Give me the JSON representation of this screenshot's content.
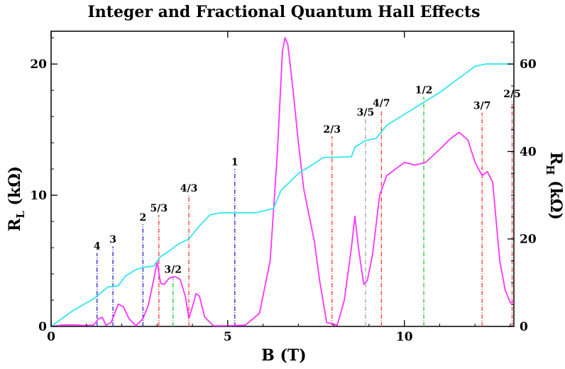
{
  "colors": {
    "longitudinal": "#ff33ff",
    "hall": "#33e6ee",
    "integer_marker": "#3333cc",
    "fractional_marker": "#ff4444",
    "even_marker": "#33cc33",
    "five_thirds_marker": "#aaaaaa"
  },
  "chart_data": {
    "type": "line",
    "title": "Integer and Fractional Quantum Hall Effects",
    "xlabel": "B (T)",
    "ylabel_left": {
      "main": "R",
      "sub": "L",
      "unit": " (kΩ)"
    },
    "ylabel_right": {
      "main": "R",
      "sub": "H",
      "unit": " (kΩ)"
    },
    "xlim": [
      0,
      13.1
    ],
    "ylim_left": [
      0,
      22.5
    ],
    "ylim_right": [
      0,
      67.5
    ],
    "x_ticks": [
      0,
      5,
      10
    ],
    "y_ticks_left": [
      0,
      10,
      20
    ],
    "y_ticks_right": [
      0,
      20,
      40,
      60
    ],
    "grid": false,
    "series": [
      {
        "key": "R_L",
        "axis": "left",
        "points": [
          [
            0,
            0
          ],
          [
            0.3,
            0.1
          ],
          [
            0.6,
            0.12
          ],
          [
            0.9,
            0.08
          ],
          [
            1.2,
            0.1
          ],
          [
            1.35,
            0.6
          ],
          [
            1.45,
            0.7
          ],
          [
            1.55,
            0.1
          ],
          [
            1.7,
            0.3
          ],
          [
            1.9,
            1.7
          ],
          [
            2.05,
            1.5
          ],
          [
            2.2,
            0.6
          ],
          [
            2.4,
            0.05
          ],
          [
            2.6,
            0.6
          ],
          [
            2.75,
            1.6
          ],
          [
            2.9,
            3.5
          ],
          [
            3.0,
            4.9
          ],
          [
            3.1,
            3.3
          ],
          [
            3.2,
            3.2
          ],
          [
            3.35,
            3.7
          ],
          [
            3.5,
            3.8
          ],
          [
            3.65,
            3.6
          ],
          [
            3.8,
            2.3
          ],
          [
            3.9,
            0.6
          ],
          [
            4.0,
            1.5
          ],
          [
            4.1,
            2.5
          ],
          [
            4.2,
            2.3
          ],
          [
            4.35,
            0.7
          ],
          [
            4.6,
            0.05
          ],
          [
            5.0,
            0.05
          ],
          [
            5.5,
            0.1
          ],
          [
            5.9,
            1.0
          ],
          [
            6.2,
            5.0
          ],
          [
            6.4,
            13.0
          ],
          [
            6.55,
            21.0
          ],
          [
            6.62,
            22.0
          ],
          [
            6.7,
            21.5
          ],
          [
            6.85,
            18.0
          ],
          [
            7.0,
            14.0
          ],
          [
            7.15,
            10.5
          ],
          [
            7.3,
            8.5
          ],
          [
            7.45,
            6.5
          ],
          [
            7.6,
            3.5
          ],
          [
            7.8,
            0.3
          ],
          [
            8.1,
            0.1
          ],
          [
            8.3,
            2.0
          ],
          [
            8.5,
            6.0
          ],
          [
            8.6,
            8.4
          ],
          [
            8.7,
            6.0
          ],
          [
            8.85,
            3.2
          ],
          [
            8.95,
            3.5
          ],
          [
            9.1,
            5.5
          ],
          [
            9.3,
            10.0
          ],
          [
            9.5,
            11.5
          ],
          [
            9.8,
            12.1
          ],
          [
            10.0,
            12.5
          ],
          [
            10.3,
            12.3
          ],
          [
            10.6,
            12.5
          ],
          [
            11.0,
            13.5
          ],
          [
            11.3,
            14.3
          ],
          [
            11.55,
            14.8
          ],
          [
            11.8,
            14.2
          ],
          [
            12.0,
            12.5
          ],
          [
            12.2,
            11.5
          ],
          [
            12.35,
            11.8
          ],
          [
            12.5,
            11.0
          ],
          [
            12.6,
            8.0
          ],
          [
            12.7,
            5.0
          ],
          [
            12.85,
            2.8
          ],
          [
            13.0,
            1.8
          ],
          [
            13.1,
            1.8
          ]
        ]
      },
      {
        "key": "R_H",
        "axis": "right",
        "points": [
          [
            0,
            0
          ],
          [
            0.6,
            3.5
          ],
          [
            1.2,
            6.3
          ],
          [
            1.35,
            7.3
          ],
          [
            1.6,
            9.0
          ],
          [
            1.9,
            9.3
          ],
          [
            2.1,
            11.5
          ],
          [
            2.4,
            13.0
          ],
          [
            2.6,
            13.5
          ],
          [
            2.9,
            13.8
          ],
          [
            3.1,
            16.0
          ],
          [
            3.3,
            17.0
          ],
          [
            3.6,
            18.8
          ],
          [
            3.9,
            20.0
          ],
          [
            4.2,
            23.0
          ],
          [
            4.5,
            25.5
          ],
          [
            4.8,
            26.0
          ],
          [
            5.8,
            26.0
          ],
          [
            6.3,
            27.0
          ],
          [
            6.5,
            31.0
          ],
          [
            7.0,
            35.0
          ],
          [
            7.5,
            37.5
          ],
          [
            7.7,
            38.6
          ],
          [
            8.5,
            38.8
          ],
          [
            8.6,
            41.0
          ],
          [
            8.9,
            42.5
          ],
          [
            9.2,
            43.0
          ],
          [
            9.5,
            46.0
          ],
          [
            10.0,
            48.5
          ],
          [
            10.5,
            51.0
          ],
          [
            11.0,
            53.5
          ],
          [
            11.5,
            56.5
          ],
          [
            12.0,
            59.5
          ],
          [
            12.3,
            60.0
          ],
          [
            13.1,
            60.0
          ]
        ]
      }
    ],
    "filling_factor_markers": [
      {
        "label": "4",
        "x": 1.3,
        "top_left": 5.6,
        "style": "integer"
      },
      {
        "label": "3",
        "x": 1.75,
        "top_left": 6.1,
        "style": "integer"
      },
      {
        "label": "2",
        "x": 2.6,
        "top_left": 7.8,
        "style": "integer"
      },
      {
        "label": "5/3",
        "x": 3.05,
        "top_left": 8.5,
        "style": "fractional"
      },
      {
        "label": "3/2",
        "x": 3.45,
        "top_left": 3.8,
        "style": "even"
      },
      {
        "label": "4/3",
        "x": 3.9,
        "top_left": 10.0,
        "style": "fractional"
      },
      {
        "label": "1",
        "x": 5.2,
        "top_left": 12.0,
        "style": "integer"
      },
      {
        "label": "2/3",
        "x": 7.95,
        "top_left": 14.5,
        "style": "fractional"
      },
      {
        "label": "3/5",
        "x": 8.9,
        "top_left": 15.8,
        "style": "five_thirds"
      },
      {
        "label": "4/7",
        "x": 9.35,
        "top_left": 16.5,
        "style": "fractional"
      },
      {
        "label": "1/2",
        "x": 10.55,
        "top_left": 17.5,
        "style": "even"
      },
      {
        "label": "3/7",
        "x": 12.2,
        "top_left": 16.3,
        "style": "fractional"
      },
      {
        "label": "2/5",
        "x": 13.05,
        "top_left": 17.2,
        "style": "fractional"
      }
    ]
  }
}
